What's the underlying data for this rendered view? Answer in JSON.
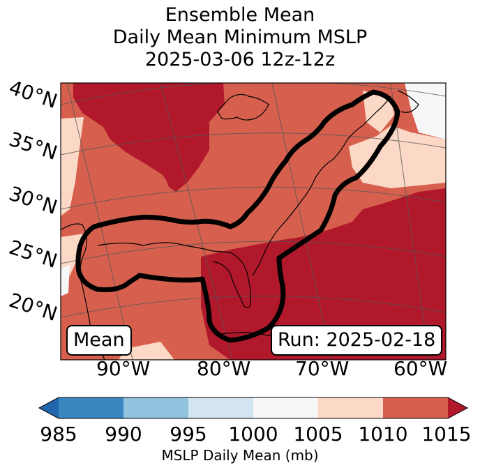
{
  "title": {
    "line1": "Ensemble Mean",
    "line2": "Daily Mean Minimum MSLP",
    "line3": "2025-03-06 12z-12z"
  },
  "map": {
    "lat_labels": [
      "40°N",
      "35°N",
      "30°N",
      "25°N",
      "20°N"
    ],
    "lon_labels": [
      "90°W",
      "80°W",
      "70°W",
      "60°W"
    ],
    "mean_box": "Mean",
    "run_box": "Run: 2025-02-18"
  },
  "colorbar": {
    "label": "MSLP Daily Mean (mb)",
    "ticks": [
      "985",
      "990",
      "995",
      "1000",
      "1005",
      "1010",
      "1015"
    ],
    "bins": [
      {
        "range": "985-990",
        "color": "#3a87c0"
      },
      {
        "range": "990-995",
        "color": "#91c3df"
      },
      {
        "range": "995-1000",
        "color": "#d2e5f0"
      },
      {
        "range": "1000-1005",
        "color": "#f7f7f7"
      },
      {
        "range": "1005-1010",
        "color": "#fcd9c6"
      },
      {
        "range": "1010-1015",
        "color": "#d6604d"
      }
    ],
    "under_color": "#2166ac",
    "over_color": "#b2182b"
  },
  "colors": {
    "very_high": "#b2182b",
    "high": "#d6604d",
    "moderate": "#fcd9c6",
    "neutral": "#f7f7f7",
    "contour": "#000000"
  }
}
